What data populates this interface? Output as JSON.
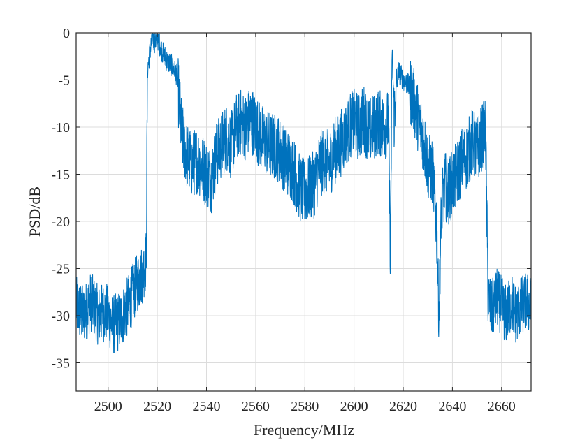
{
  "chart_data": {
    "type": "line",
    "title": "",
    "xlabel": "Frequency/MHz",
    "ylabel": "PSD/dB",
    "xlim": [
      2487,
      2672
    ],
    "ylim": [
      -38,
      0
    ],
    "xticks": [
      2500,
      2520,
      2540,
      2560,
      2580,
      2600,
      2620,
      2640,
      2660
    ],
    "yticks": [
      0,
      -5,
      -10,
      -15,
      -20,
      -25,
      -30,
      -35
    ],
    "xtick_labels": [
      "2500",
      "2520",
      "2540",
      "2560",
      "2580",
      "2600",
      "2620",
      "2640",
      "2660"
    ],
    "ytick_labels": [
      "0",
      "-5",
      "-10",
      "-15",
      "-20",
      "-25",
      "-30",
      "-35"
    ],
    "grid": true,
    "series": [
      {
        "color": "#0072BD",
        "x": [
          2487,
          2490,
          2493,
          2496,
          2499,
          2502,
          2505,
          2508,
          2511,
          2514,
          2515.5,
          2516,
          2517,
          2518,
          2519,
          2520,
          2522,
          2524,
          2526,
          2528,
          2530,
          2532,
          2534,
          2536,
          2538,
          2540,
          2542,
          2544,
          2546,
          2548,
          2550,
          2552,
          2554,
          2556,
          2558,
          2560,
          2562,
          2564,
          2566,
          2568,
          2570,
          2572,
          2574,
          2576,
          2578,
          2580,
          2582,
          2584,
          2586,
          2588,
          2590,
          2592,
          2594,
          2596,
          2598,
          2600,
          2602,
          2604,
          2606,
          2608,
          2610,
          2612,
          2614,
          2614.8,
          2615.5,
          2616.3,
          2618,
          2620,
          2622,
          2624,
          2626,
          2628,
          2630,
          2632,
          2633.5,
          2634.5,
          2635.5,
          2637,
          2638,
          2640,
          2642,
          2644,
          2646,
          2648,
          2650,
          2652,
          2653.5,
          2654.5,
          2656,
          2658,
          2660,
          2662,
          2664,
          2666,
          2668,
          2670,
          2672
        ],
        "y": [
          -29,
          -30,
          -28.5,
          -30,
          -29.5,
          -31,
          -30.5,
          -29,
          -27,
          -25.5,
          -24,
          -4,
          -2,
          -0.5,
          -1,
          -0.5,
          -2,
          -3,
          -3.5,
          -4.5,
          -11,
          -13,
          -14,
          -13.5,
          -14,
          -15,
          -15.5,
          -13,
          -12,
          -11,
          -12,
          -10,
          -9.5,
          -10,
          -9,
          -10,
          -11,
          -11.5,
          -12,
          -12,
          -12.5,
          -13.5,
          -14,
          -15,
          -16.5,
          -17,
          -16.5,
          -16,
          -14,
          -13.5,
          -14,
          -12.5,
          -12,
          -11,
          -10,
          -9.5,
          -10,
          -9,
          -10.5,
          -10,
          -9.5,
          -10,
          -9.5,
          -24,
          -1.5,
          -9,
          -4,
          -5,
          -5.5,
          -7,
          -9,
          -11,
          -14,
          -15,
          -20,
          -30,
          -19,
          -16,
          -17,
          -16,
          -15,
          -13.5,
          -13,
          -11.5,
          -12.5,
          -11,
          -10.5,
          -28,
          -29.5,
          -28,
          -29,
          -30,
          -28.5,
          -30,
          -29,
          -28.5,
          -29
        ]
      }
    ]
  }
}
